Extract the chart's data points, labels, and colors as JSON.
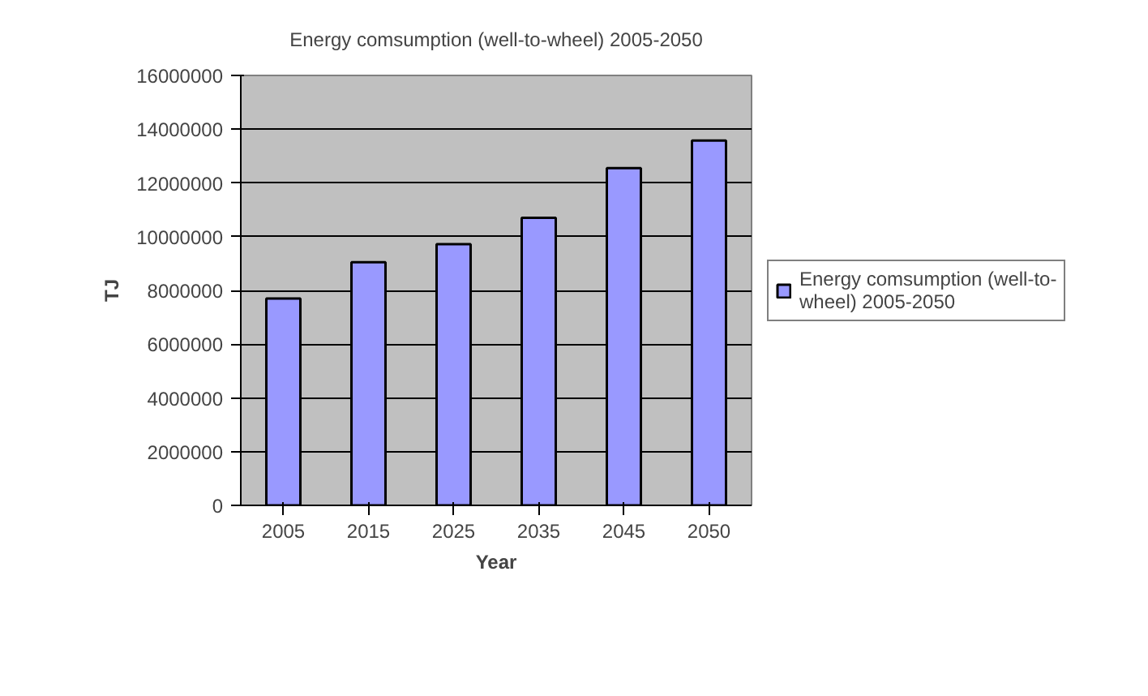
{
  "chart_data": {
    "type": "bar",
    "title": "Energy comsumption (well-to-wheel) 2005-2050",
    "xlabel": "Year",
    "ylabel": "TJ",
    "categories": [
      "2005",
      "2015",
      "2025",
      "2035",
      "2045",
      "2050"
    ],
    "series": [
      {
        "name": "Energy comsumption (well-to-wheel) 2005-2050",
        "color": "#9999ff",
        "values": [
          7700000,
          9050000,
          9720000,
          10700000,
          12550000,
          13580000
        ]
      }
    ],
    "ylim": [
      0,
      16000000
    ],
    "yticks": [
      0,
      2000000,
      4000000,
      6000000,
      8000000,
      10000000,
      12000000,
      14000000,
      16000000
    ],
    "grid": "y",
    "legend": "right"
  }
}
